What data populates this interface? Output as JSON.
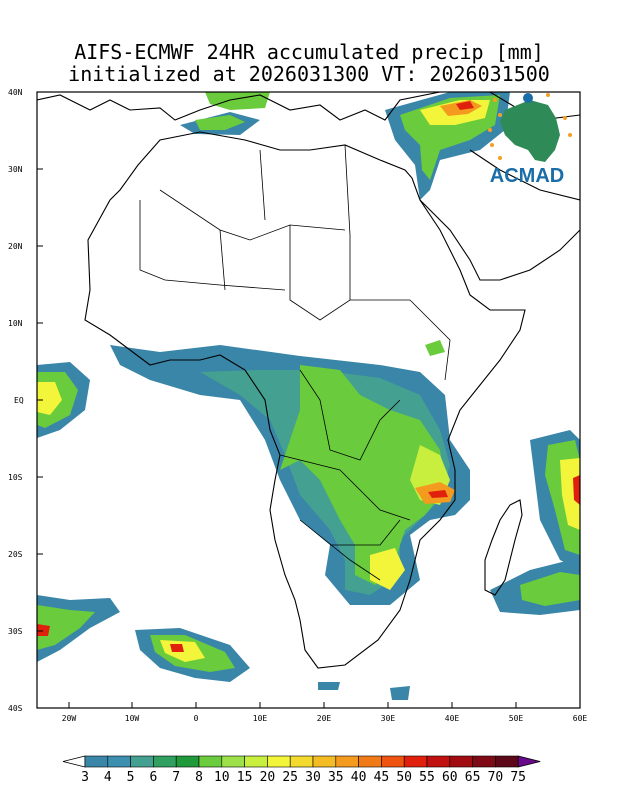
{
  "title_line1": "AIFS-ECMWF 24HR accumulated precip [mm]",
  "title_line2": "initialized at 2026031300 VT: 2026031500",
  "logo_text": "ACMAD",
  "lat_labels": [
    "40N",
    "30N",
    "20N",
    "10N",
    "EQ",
    "10S",
    "20S",
    "30S",
    "40S"
  ],
  "lon_labels": [
    "20W",
    "10W",
    "0",
    "10E",
    "20E",
    "30E",
    "40E",
    "50E",
    "60E"
  ],
  "colorbar": {
    "labels": [
      "3",
      "4",
      "5",
      "6",
      "7",
      "8",
      "10",
      "15",
      "20",
      "25",
      "30",
      "35",
      "40",
      "45",
      "50",
      "55",
      "60",
      "65",
      "70",
      "75"
    ],
    "colors": [
      "#3a86a8",
      "#3d8fb0",
      "#44a090",
      "#2fa060",
      "#1f9a3a",
      "#6acc3c",
      "#9ee04a",
      "#c8ee3e",
      "#f2f53a",
      "#f4da2e",
      "#f4bc24",
      "#f49a1e",
      "#f07a18",
      "#ee5410",
      "#e0200c",
      "#c01010",
      "#a00c12",
      "#7e0a16",
      "#5c0818",
      "#6a0a8a"
    ]
  },
  "precip_levels": {
    "light": "#3a86a8",
    "mid": "#44a090",
    "green": "#6acc3c",
    "yellow": "#f2f53a",
    "orange": "#f49a1e",
    "red": "#e0200c"
  }
}
